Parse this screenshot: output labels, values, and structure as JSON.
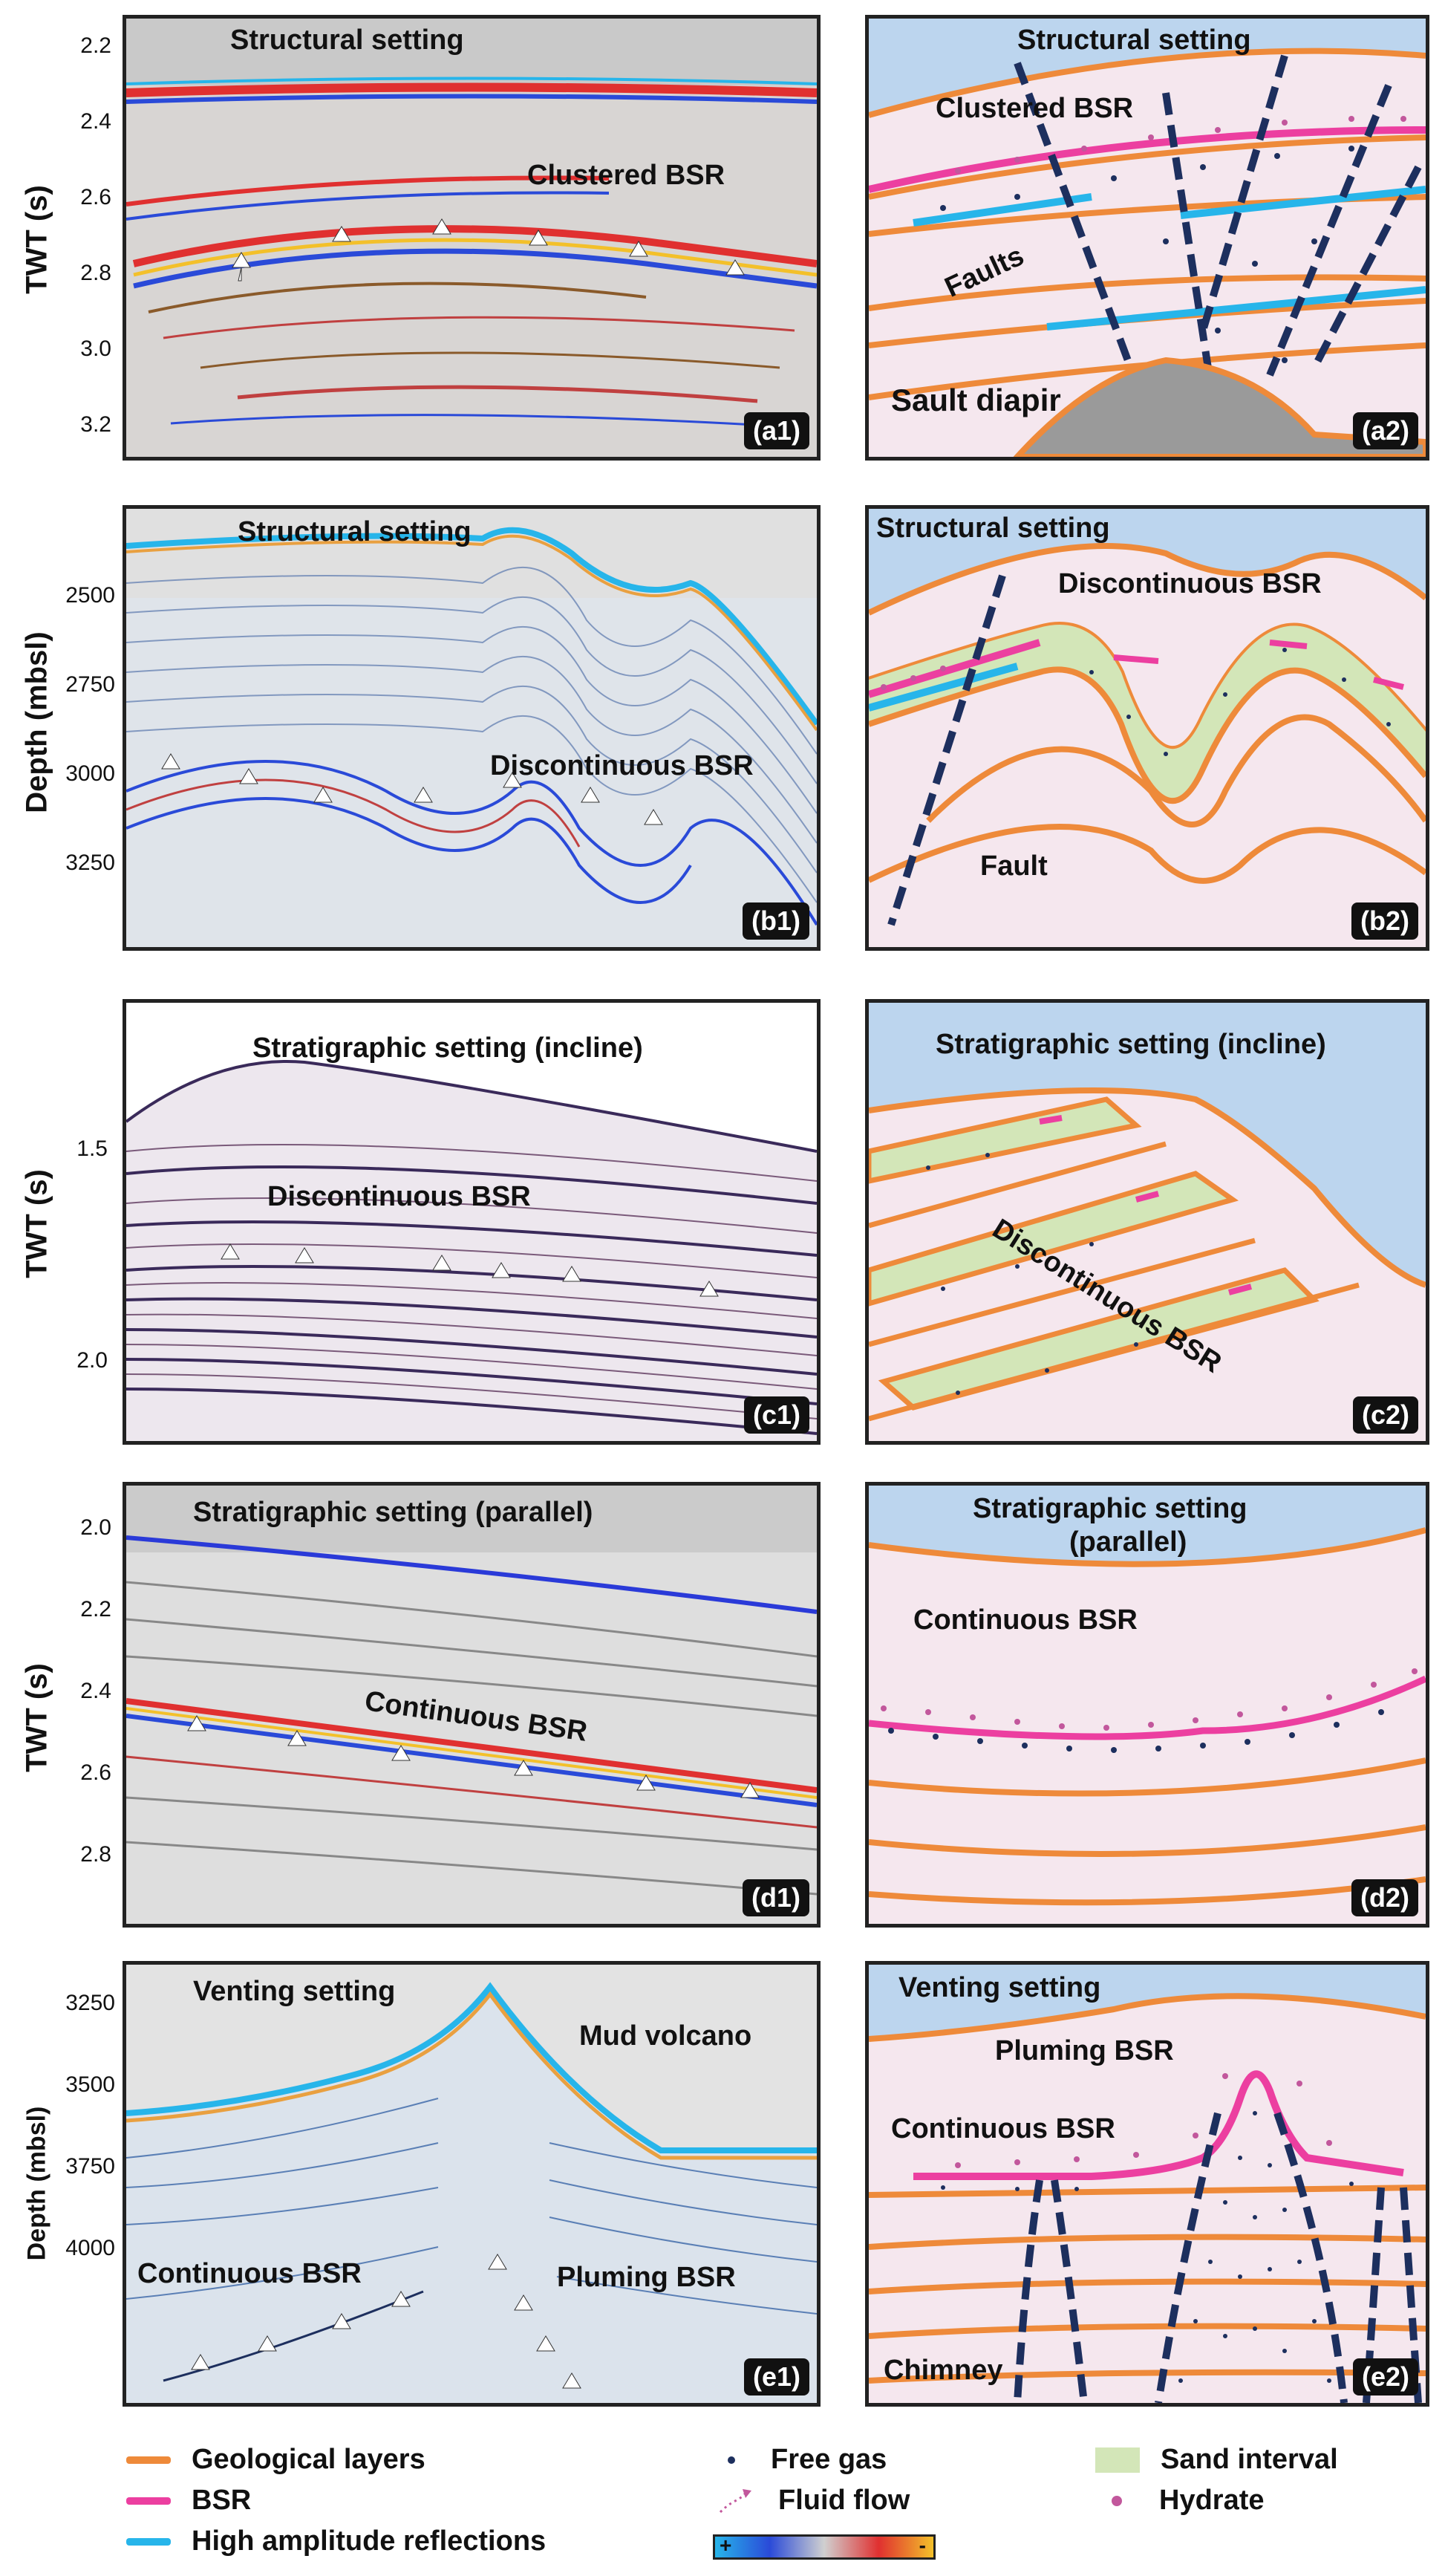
{
  "axes": {
    "a_label": "TWT (s)",
    "a_ticks": [
      "2.2",
      "2.4",
      "2.6",
      "2.8",
      "3.0",
      "3.2"
    ],
    "b_label": "Depth (mbsl)",
    "b_ticks": [
      "2500",
      "2750",
      "3000",
      "3250"
    ],
    "c_label": "TWT (s)",
    "c_ticks": [
      "1.5",
      "2.0"
    ],
    "d_label": "TWT (s)",
    "d_ticks": [
      "2.0",
      "2.2",
      "2.4",
      "2.6",
      "2.8"
    ],
    "e_label": "Depth (mbsl)",
    "e_ticks": [
      "3250",
      "3500",
      "3750",
      "4000"
    ]
  },
  "panels": {
    "a1": {
      "tag": "(a1)",
      "title": "Structural setting",
      "note1": "Clustered BSR"
    },
    "a2": {
      "tag": "(a2)",
      "title": "Structural setting",
      "note1": "Clustered BSR",
      "note2": "Faults",
      "note3": "Sault diapir"
    },
    "b1": {
      "tag": "(b1)",
      "title": "Structural setting",
      "note1": "Discontinuous BSR"
    },
    "b2": {
      "tag": "(b2)",
      "title": "Structural setting",
      "note1": "Discontinuous BSR",
      "note2": "Fault"
    },
    "c1": {
      "tag": "(c1)",
      "title": "Stratigraphic setting (incline)",
      "note1": "Discontinuous BSR"
    },
    "c2": {
      "tag": "(c2)",
      "title": "Stratigraphic setting (incline)",
      "note1": "Discontinuous BSR"
    },
    "d1": {
      "tag": "(d1)",
      "title": "Stratigraphic setting (parallel)",
      "note1": "Continuous BSR"
    },
    "d2": {
      "tag": "(d2)",
      "title1": "Stratigraphic setting",
      "title2": "(parallel)",
      "note1": "Continuous BSR"
    },
    "e1": {
      "tag": "(e1)",
      "title": "Venting setting",
      "note1": "Mud volcano",
      "note2": "Continuous BSR",
      "note3": "Pluming BSR"
    },
    "e2": {
      "tag": "(e2)",
      "title": "Venting setting",
      "note1": "Pluming BSR",
      "note2": "Continuous BSR",
      "note3": "Chimney"
    }
  },
  "legend": {
    "geological_layers": "Geological layers",
    "bsr": "BSR",
    "high_amplitude": "High amplitude reflections",
    "free_gas": "Free gas",
    "fluid_flow": "Fluid flow",
    "sand_interval": "Sand interval",
    "hydrate": "Hydrate",
    "colorbar_plus": "+",
    "colorbar_minus": "-"
  },
  "colors": {
    "layer": "#EE8A3A",
    "bsr": "#EC3FA0",
    "high_amp": "#27B5EA",
    "sky": "#BCD5EE",
    "sediment": "#F5E7EE",
    "sand": "#D3E6B8",
    "gas": "#1D2F5E",
    "hydrate": "#C2579C",
    "fault": "#1D2F5E"
  }
}
